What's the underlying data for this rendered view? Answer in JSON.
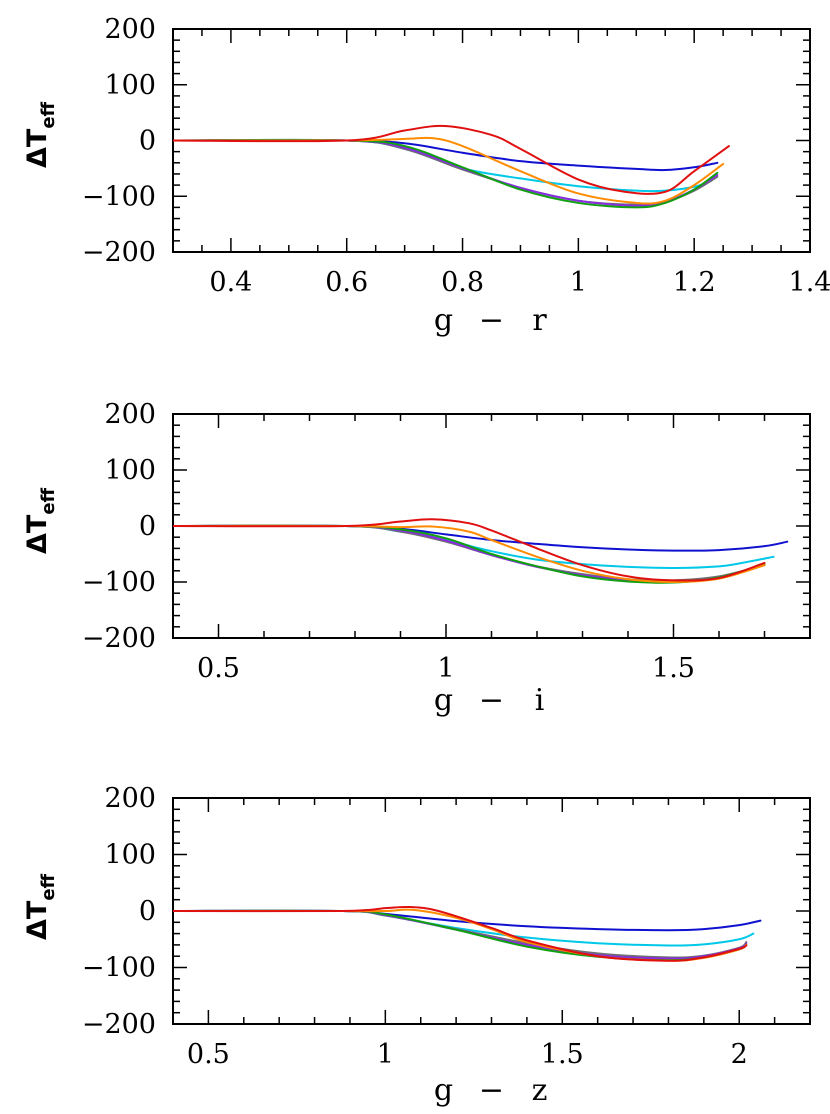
{
  "chart_data": [
    {
      "type": "line",
      "xlabel": {
        "left": "g",
        "dash": "−",
        "right": "r"
      },
      "ylabel": {
        "main": "ΔT",
        "sub": "eff"
      },
      "xlim": [
        0.3,
        1.4
      ],
      "ylim": [
        -200,
        200
      ],
      "xticks": [
        0.4,
        0.6,
        0.8,
        1,
        1.2,
        1.4
      ],
      "xtick_labels": [
        "0.4",
        "0.6",
        "0.8",
        "1",
        "1.2",
        "1.4"
      ],
      "x_minor_step": 0.05,
      "yticks": [
        -200,
        -100,
        0,
        100,
        200
      ],
      "ytick_labels": [
        "−200",
        "−100",
        "0",
        "100",
        "200"
      ],
      "y_minor_step": 20,
      "grid": false,
      "series": [
        {
          "color": "#1010d0",
          "x": [
            0.3,
            0.6,
            0.7,
            0.8,
            0.9,
            1.0,
            1.1,
            1.15,
            1.2,
            1.24
          ],
          "y": [
            0,
            0,
            -5,
            -22,
            -37,
            -45,
            -51,
            -53,
            -48,
            -40
          ]
        },
        {
          "color": "#00c8e8",
          "x": [
            0.3,
            0.6,
            0.7,
            0.8,
            0.9,
            1.0,
            1.1,
            1.15,
            1.2,
            1.23
          ],
          "y": [
            0,
            0,
            -15,
            -50,
            -68,
            -82,
            -90,
            -90,
            -83,
            -72
          ]
        },
        {
          "color": "#707070",
          "x": [
            0.3,
            0.6,
            0.7,
            0.8,
            0.9,
            1.0,
            1.1,
            1.15,
            1.2,
            1.24
          ],
          "y": [
            0,
            0,
            -15,
            -52,
            -85,
            -108,
            -115,
            -110,
            -90,
            -65
          ]
        },
        {
          "color": "#8a2be2",
          "x": [
            0.3,
            0.6,
            0.7,
            0.8,
            0.9,
            1.0,
            1.1,
            1.15,
            1.2,
            1.24
          ],
          "y": [
            0,
            0,
            -13,
            -50,
            -85,
            -108,
            -117,
            -110,
            -88,
            -62
          ]
        },
        {
          "color": "#10a010",
          "x": [
            0.3,
            0.6,
            0.7,
            0.8,
            0.9,
            1.0,
            1.1,
            1.15,
            1.2,
            1.24
          ],
          "y": [
            0,
            0,
            -10,
            -48,
            -88,
            -112,
            -120,
            -112,
            -88,
            -58
          ]
        },
        {
          "color": "#ff8c00",
          "x": [
            0.3,
            0.6,
            0.7,
            0.75,
            0.8,
            0.9,
            1.0,
            1.1,
            1.15,
            1.2,
            1.25
          ],
          "y": [
            0,
            0,
            3,
            4,
            -10,
            -55,
            -95,
            -112,
            -108,
            -80,
            -42
          ]
        },
        {
          "color": "#e01010",
          "x": [
            0.3,
            0.6,
            0.7,
            0.77,
            0.85,
            0.9,
            1.0,
            1.08,
            1.15,
            1.2,
            1.26
          ],
          "y": [
            0,
            0,
            18,
            26,
            10,
            -15,
            -70,
            -92,
            -92,
            -55,
            -10
          ]
        }
      ]
    },
    {
      "type": "line",
      "xlabel": {
        "left": "g",
        "dash": "−",
        "right": "i"
      },
      "ylabel": {
        "main": "ΔT",
        "sub": "eff"
      },
      "xlim": [
        0.4,
        1.8
      ],
      "ylim": [
        -200,
        200
      ],
      "xticks": [
        0.5,
        1,
        1.5
      ],
      "xtick_labels": [
        "0.5",
        "1",
        "1.5"
      ],
      "x_minor_step": 0.1,
      "yticks": [
        -200,
        -100,
        0,
        100,
        200
      ],
      "ytick_labels": [
        "−200",
        "−100",
        "0",
        "100",
        "200"
      ],
      "y_minor_step": 20,
      "grid": false,
      "series": [
        {
          "color": "#1010d0",
          "x": [
            0.4,
            0.78,
            0.9,
            1.0,
            1.1,
            1.2,
            1.3,
            1.4,
            1.5,
            1.6,
            1.7,
            1.75
          ],
          "y": [
            0,
            0,
            -5,
            -15,
            -25,
            -32,
            -38,
            -42,
            -44,
            -43,
            -36,
            -28
          ]
        },
        {
          "color": "#00c8e8",
          "x": [
            0.4,
            0.78,
            0.9,
            1.0,
            1.1,
            1.2,
            1.3,
            1.4,
            1.5,
            1.6,
            1.65,
            1.72
          ],
          "y": [
            0,
            0,
            -10,
            -25,
            -45,
            -60,
            -68,
            -73,
            -75,
            -72,
            -66,
            -55
          ]
        },
        {
          "color": "#707070",
          "x": [
            0.4,
            0.78,
            0.9,
            1.0,
            1.1,
            1.2,
            1.3,
            1.4,
            1.5,
            1.6,
            1.7
          ],
          "y": [
            0,
            0,
            -10,
            -28,
            -52,
            -72,
            -86,
            -95,
            -97,
            -90,
            -70
          ]
        },
        {
          "color": "#8a2be2",
          "x": [
            0.4,
            0.78,
            0.9,
            1.0,
            1.1,
            1.2,
            1.3,
            1.4,
            1.5,
            1.6,
            1.7
          ],
          "y": [
            0,
            0,
            -8,
            -26,
            -52,
            -73,
            -88,
            -97,
            -100,
            -92,
            -68
          ]
        },
        {
          "color": "#10a010",
          "x": [
            0.4,
            0.78,
            0.9,
            1.0,
            1.1,
            1.2,
            1.3,
            1.4,
            1.5,
            1.6,
            1.7
          ],
          "y": [
            0,
            0,
            -6,
            -22,
            -50,
            -72,
            -90,
            -99,
            -101,
            -92,
            -68
          ]
        },
        {
          "color": "#ff8c00",
          "x": [
            0.4,
            0.78,
            0.9,
            0.97,
            1.05,
            1.1,
            1.2,
            1.3,
            1.4,
            1.5,
            1.6,
            1.7
          ],
          "y": [
            0,
            0,
            -2,
            -1,
            -10,
            -25,
            -55,
            -80,
            -95,
            -100,
            -94,
            -70
          ]
        },
        {
          "color": "#e01010",
          "x": [
            0.4,
            0.78,
            0.9,
            0.97,
            1.05,
            1.1,
            1.2,
            1.3,
            1.4,
            1.5,
            1.6,
            1.7
          ],
          "y": [
            0,
            0,
            8,
            12,
            5,
            -8,
            -40,
            -70,
            -90,
            -97,
            -93,
            -66
          ]
        }
      ]
    },
    {
      "type": "line",
      "xlabel": {
        "left": "g",
        "dash": "−",
        "right": "z"
      },
      "ylabel": {
        "main": "ΔT",
        "sub": "eff"
      },
      "xlim": [
        0.4,
        2.2
      ],
      "ylim": [
        -200,
        200
      ],
      "xticks": [
        0.5,
        1,
        1.5,
        2
      ],
      "xtick_labels": [
        "0.5",
        "1",
        "1.5",
        "2"
      ],
      "x_minor_step": 0.1,
      "yticks": [
        -200,
        -100,
        0,
        100,
        200
      ],
      "ytick_labels": [
        "−200",
        "−100",
        "0",
        "100",
        "200"
      ],
      "y_minor_step": 20,
      "grid": false,
      "series": [
        {
          "color": "#1010d0",
          "x": [
            0.4,
            0.88,
            1.0,
            1.2,
            1.4,
            1.6,
            1.8,
            1.9,
            2.0,
            2.06
          ],
          "y": [
            0,
            0,
            -5,
            -18,
            -27,
            -32,
            -34,
            -32,
            -25,
            -17
          ]
        },
        {
          "color": "#00c8e8",
          "x": [
            0.4,
            0.88,
            1.0,
            1.2,
            1.4,
            1.6,
            1.8,
            1.9,
            2.0,
            2.04
          ],
          "y": [
            0,
            0,
            -8,
            -30,
            -47,
            -57,
            -61,
            -59,
            -50,
            -40
          ]
        },
        {
          "color": "#707070",
          "x": [
            0.4,
            0.88,
            1.0,
            1.2,
            1.4,
            1.6,
            1.8,
            1.9,
            2.0,
            2.02
          ],
          "y": [
            0,
            0,
            -8,
            -32,
            -57,
            -75,
            -82,
            -79,
            -65,
            -55
          ]
        },
        {
          "color": "#8a2be2",
          "x": [
            0.4,
            0.88,
            1.0,
            1.2,
            1.4,
            1.6,
            1.8,
            1.9,
            2.0,
            2.02
          ],
          "y": [
            0,
            0,
            -7,
            -33,
            -60,
            -78,
            -84,
            -80,
            -66,
            -58
          ]
        },
        {
          "color": "#10a010",
          "x": [
            0.4,
            0.88,
            1.0,
            1.2,
            1.4,
            1.6,
            1.8,
            1.9,
            2.0,
            2.02
          ],
          "y": [
            0,
            0,
            -6,
            -33,
            -63,
            -81,
            -87,
            -82,
            -68,
            -60
          ]
        },
        {
          "color": "#ff8c00",
          "x": [
            0.4,
            0.88,
            1.0,
            1.08,
            1.2,
            1.3,
            1.4,
            1.6,
            1.8,
            1.9,
            2.0,
            2.02
          ],
          "y": [
            0,
            0,
            0,
            2,
            -12,
            -32,
            -55,
            -80,
            -88,
            -83,
            -68,
            -60
          ]
        },
        {
          "color": "#e01010",
          "x": [
            0.4,
            0.88,
            1.0,
            1.07,
            1.15,
            1.3,
            1.4,
            1.6,
            1.8,
            1.9,
            2.0,
            2.02
          ],
          "y": [
            0,
            0,
            5,
            7,
            0,
            -30,
            -52,
            -80,
            -88,
            -82,
            -67,
            -61
          ]
        }
      ]
    }
  ]
}
